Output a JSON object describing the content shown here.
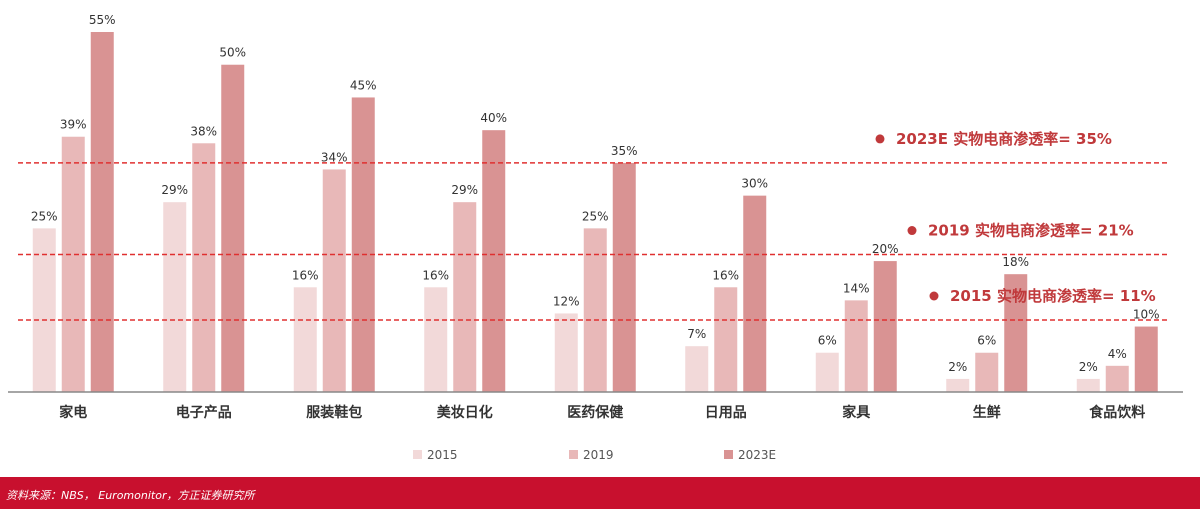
{
  "chart_data": {
    "type": "bar",
    "categories": [
      "家电",
      "电子产品",
      "服装鞋包",
      "美妆日化",
      "医药保健",
      "日用品",
      "家具",
      "生鲜",
      "食品饮料"
    ],
    "series": [
      {
        "name": "2015",
        "color": "#f2d9d9",
        "values": [
          25,
          29,
          16,
          16,
          12,
          7,
          6,
          2,
          2
        ]
      },
      {
        "name": "2019",
        "color": "#e8b8b8",
        "values": [
          39,
          38,
          34,
          29,
          25,
          16,
          14,
          6,
          4
        ]
      },
      {
        "name": "2023E",
        "color": "#d99393",
        "values": [
          55,
          50,
          45,
          40,
          35,
          30,
          20,
          18,
          10
        ]
      }
    ],
    "value_suffix": "%",
    "ylim": [
      0,
      55
    ],
    "legend_position": "bottom",
    "reference_lines": [
      {
        "value": 35,
        "label": "2023E 实物电商渗透率= 35%"
      },
      {
        "value": 21,
        "label": "2019 实物电商渗透率= 21%"
      },
      {
        "value": 11,
        "label": "2015 实物电商渗透率= 11%"
      }
    ],
    "reference_color": "#e03030",
    "annotation_color": "#c0393b"
  },
  "footer": {
    "source": "资料来源：NBS， Euromonitor，方正证券研究所"
  }
}
